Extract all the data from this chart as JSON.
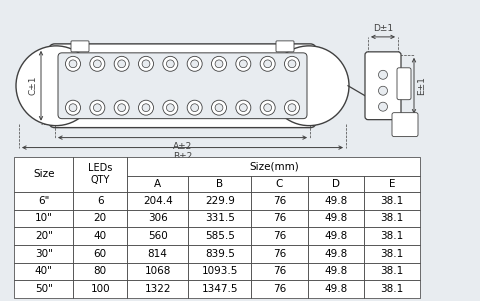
{
  "bg_color": "#e8ecf0",
  "table_rows": [
    [
      "6\"",
      "6",
      "204.4",
      "229.9",
      "76",
      "49.8",
      "38.1"
    ],
    [
      "10\"",
      "20",
      "306",
      "331.5",
      "76",
      "49.8",
      "38.1"
    ],
    [
      "20\"",
      "40",
      "560",
      "585.5",
      "76",
      "49.8",
      "38.1"
    ],
    [
      "30\"",
      "60",
      "814",
      "839.5",
      "76",
      "49.8",
      "38.1"
    ],
    [
      "40\"",
      "80",
      "1068",
      "1093.5",
      "76",
      "49.8",
      "38.1"
    ],
    [
      "50\"",
      "100",
      "1322",
      "1347.5",
      "76",
      "49.8",
      "38.1"
    ]
  ],
  "table_fontsize": 7.5,
  "line_color": "#404040",
  "lw": 0.7
}
